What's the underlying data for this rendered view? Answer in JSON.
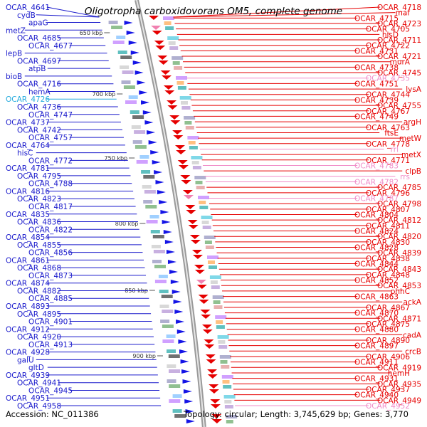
{
  "title": "Oligotropha carboxidovorans OM5, complete genome",
  "footer": {
    "accession": "Accession: NC_011386",
    "topology": "Topology: circular; Length: 3,745,629 bp; Genes: 3,770"
  },
  "colors": {
    "left_label": "#1a1acc",
    "right_label": "#e60000",
    "left_highlight": "#22aadd",
    "right_highlight": "#f08cc8",
    "backbone": "#808080",
    "tick": "#2a7a2a"
  },
  "kbp_ticks": [
    "650 kbp",
    "700 kbp",
    "750 kbp",
    "800 kbp",
    "850 kbp",
    "900 kbp"
  ],
  "left_labels": [
    "OCAR_4641",
    "cydB",
    "apaG",
    "metZ",
    "OCAR_4685",
    "OCAR_4677",
    "lepB",
    "OCAR_4697",
    "atpB",
    "bioB",
    "OCAR_4716",
    "hemA",
    "OCAR_4726",
    "OCAR_4736",
    "OCAR_4747",
    "OCAR_4737",
    "OCAR_4742",
    "OCAR_4757",
    "OCAR_4764",
    "hisC",
    "OCAR_4772",
    "OCAR_4781",
    "OCAR_4795",
    "OCAR_4788",
    "OCAR_4816",
    "OCAR_4823",
    "OCAR_4817",
    "OCAR_4835",
    "OCAR_4836",
    "OCAR_4822",
    "OCAR_4854",
    "OCAR_4855",
    "OCAR_4856",
    "OCAR_4861",
    "OCAR_4868",
    "OCAR_4873",
    "OCAR_4874",
    "OCAR_4882",
    "OCAR_4885",
    "OCAR_4893",
    "OCAR_4895",
    "OCAR_4901",
    "OCAR_4912",
    "OCAR_4920",
    "OCAR_4913",
    "OCAR_4928",
    "galU",
    "gltD",
    "OCAR_4939",
    "OCAR_4941",
    "OCAR_4945",
    "OCAR_4951",
    "OCAR_4958"
  ],
  "right_labels": [
    "OCAR_4718",
    "maf",
    "OCAR_4715",
    "OCAR_4723",
    "OCAR_4705",
    "hisD",
    "OCAR_4711",
    "OCAR_4722",
    "OCAR_4731",
    "OCAR_4721",
    "murA",
    "OCAR_4738",
    "OCAR_4745",
    "OCAR_4735",
    "OCAR_4751",
    "lysA",
    "OCAR_4744",
    "OCAR_4739",
    "OCAR_4755",
    "OCAR_4767",
    "OCAR_4749",
    "argH",
    "OCAR_4763",
    "ftsE",
    "metW",
    "OCAR_4778",
    "rrl",
    "metX",
    "OCAR_4771",
    "OCAR_4783",
    "clpB",
    "rrs",
    "OCAR_4782",
    "OCAR_4785",
    "OCAR_4796",
    "OCAR_4787",
    "OCAR_4798",
    "OCAR_4807",
    "OCAR_4804",
    "OCAR_4812",
    "OCAR_4811",
    "OCAR_4824",
    "OCAR_4820",
    "OCAR_4830",
    "OCAR_4828",
    "OCAR_4839",
    "OCAR_4838",
    "OCAR_4844",
    "OCAR_4843",
    "OCAR_4848",
    "OCAR_4852",
    "OCAR_4853",
    "phhC",
    "OCAR_4863",
    "ackA",
    "OCAR_4867",
    "OCAR_4870",
    "OCAR_4871",
    "OCAR_4875",
    "OCAR_4880",
    "cadA",
    "OCAR_4890",
    "OCAR_4897",
    "crcB",
    "OCAR_4906",
    "OCAR_4911",
    "OCAR_4919",
    "hemH",
    "OCAR_4931",
    "OCAR_4935",
    "OCAR_4937",
    "OCAR_4940",
    "OCAR_4949",
    "OCAR_4952"
  ]
}
